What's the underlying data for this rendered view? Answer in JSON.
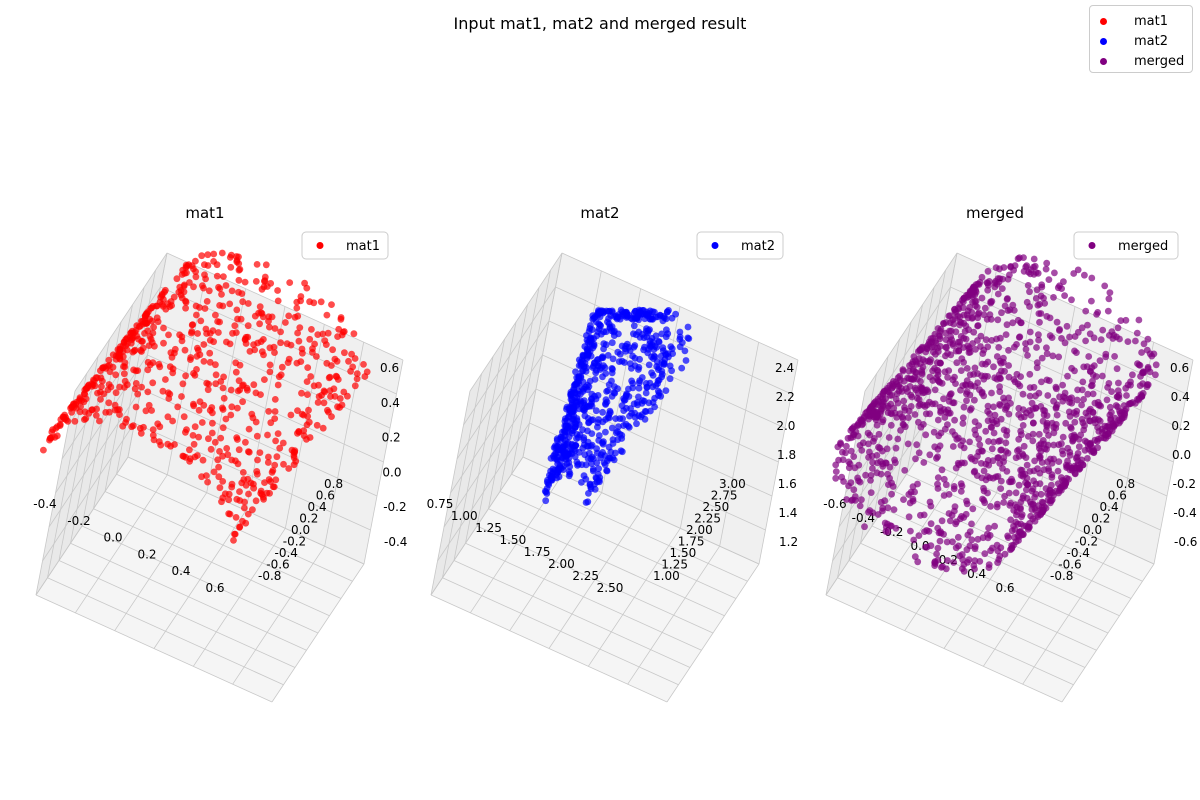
{
  "figure": {
    "suptitle": "Input mat1, mat2 and merged result",
    "legend": [
      {
        "label": "mat1",
        "color": "#ff0000"
      },
      {
        "label": "mat2",
        "color": "#0000ff"
      },
      {
        "label": "merged",
        "color": "#800080"
      }
    ]
  },
  "chart_data": [
    {
      "type": "scatter",
      "title": "mat1",
      "legend": "mat1",
      "color": "#ff0000",
      "xlim": [
        -0.5,
        0.65
      ],
      "ylim": [
        -0.85,
        0.85
      ],
      "zlim": [
        -0.5,
        0.65
      ],
      "xticks": [
        "-0.4",
        "-0.2",
        "0.0",
        "0.2",
        "0.4",
        "0.6"
      ],
      "yticks": [
        "-0.8",
        "-0.6",
        "-0.4",
        "-0.2",
        "0.0",
        "0.2",
        "0.4",
        "0.6",
        "0.8"
      ],
      "zticks": [
        "-0.4",
        "-0.2",
        "0.0",
        "0.2",
        "0.4",
        "0.6"
      ],
      "shape": "half-cylinder of radius 0.6 about the y-axis, y from -0.8 to 0.8",
      "point_count": 700
    },
    {
      "type": "scatter",
      "title": "mat2",
      "legend": "mat2",
      "color": "#0000ff",
      "xlim": [
        0.7,
        2.5
      ],
      "ylim": [
        1.0,
        3.0
      ],
      "zlim": [
        1.2,
        2.5
      ],
      "xticks": [
        "0.75",
        "1.00",
        "1.25",
        "1.50",
        "1.75",
        "2.00",
        "2.25",
        "2.50"
      ],
      "yticks": [
        "1.00",
        "1.25",
        "1.50",
        "1.75",
        "2.00",
        "2.25",
        "2.50",
        "2.75",
        "3.00"
      ],
      "zticks": [
        "1.2",
        "1.4",
        "1.6",
        "1.8",
        "2.0",
        "2.2",
        "2.4"
      ],
      "shape": "curved half-cylinder sheet, transformed copy of mat1",
      "point_count": 700
    },
    {
      "type": "scatter",
      "title": "merged",
      "legend": "merged",
      "color": "#800080",
      "xlim": [
        -0.65,
        0.65
      ],
      "ylim": [
        -0.85,
        0.85
      ],
      "zlim": [
        -0.65,
        0.65
      ],
      "xticks": [
        "-0.6",
        "-0.4",
        "-0.2",
        "0.0",
        "0.2",
        "0.4",
        "0.6"
      ],
      "yticks": [
        "-0.8",
        "-0.6",
        "-0.4",
        "-0.2",
        "0.0",
        "0.2",
        "0.4",
        "0.6",
        "0.8"
      ],
      "zticks": [
        "-0.6",
        "-0.4",
        "-0.2",
        "0.0",
        "0.2",
        "0.4",
        "0.6"
      ],
      "shape": "full cylinder of radius 0.6 about the y-axis, y from -0.8 to 0.8",
      "point_count": 1400
    }
  ]
}
